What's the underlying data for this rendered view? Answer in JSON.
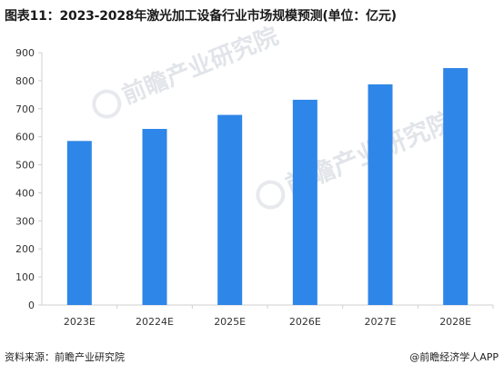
{
  "page": {
    "title": "图表11：2023-2028年激光加工设备行业市场规模预测(单位：亿元)",
    "source": "资料来源：前瞻产业研究院",
    "brand": "@前瞻经济学人APP",
    "watermark": "前瞻产业研究院"
  },
  "colors": {
    "bar": "#2e86e8",
    "axis": "#cfcfcf",
    "tick_text": "#333333",
    "watermark": "#c9cfd8"
  },
  "chart_data": {
    "type": "bar",
    "categories": [
      "2023E",
      "20224E",
      "2025E",
      "2026E",
      "2027E",
      "2028E"
    ],
    "values": [
      585,
      628,
      678,
      732,
      787,
      845
    ],
    "ylim": [
      0,
      900
    ],
    "yticks": [
      0,
      100,
      200,
      300,
      400,
      500,
      600,
      700,
      800,
      900
    ],
    "grid": false,
    "legend": "none"
  }
}
